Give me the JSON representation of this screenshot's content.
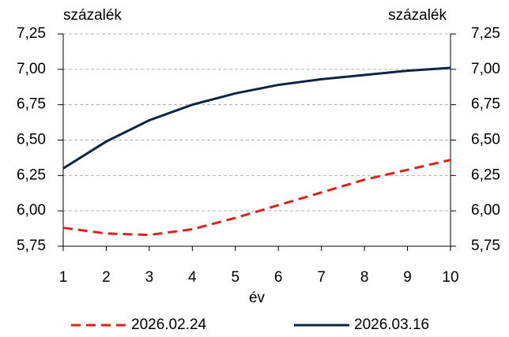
{
  "chart_data": {
    "type": "line",
    "y_label": "százalék",
    "y2_label": "százalék",
    "x_label": "év",
    "x": [
      1,
      2,
      3,
      4,
      5,
      6,
      7,
      8,
      9,
      10
    ],
    "series": [
      {
        "name": "2026.02.24",
        "color": "#e0201b",
        "dash": true,
        "values": [
          5.88,
          5.84,
          5.83,
          5.87,
          5.95,
          6.04,
          6.13,
          6.22,
          6.29,
          6.36
        ]
      },
      {
        "name": "2026.03.16",
        "color": "#0f2345",
        "dash": false,
        "values": [
          6.3,
          6.49,
          6.64,
          6.75,
          6.83,
          6.89,
          6.93,
          6.96,
          6.99,
          7.01
        ]
      }
    ],
    "xlim": [
      1,
      10
    ],
    "xticks": [
      1,
      2,
      3,
      4,
      5,
      6,
      7,
      8,
      9,
      10
    ],
    "ylim": [
      5.75,
      7.25
    ],
    "yticks": [
      {
        "value": 5.75,
        "label": "5,75"
      },
      {
        "value": 6,
        "label": "6,00"
      },
      {
        "value": 6.25,
        "label": "6,25"
      },
      {
        "value": 6.5,
        "label": "6,50"
      },
      {
        "value": 6.75,
        "label": "6,75"
      },
      {
        "value": 7,
        "label": "7,00"
      },
      {
        "value": 7.25,
        "label": "7,25"
      }
    ],
    "y2lim": [
      5.75,
      7.25
    ],
    "y2ticks": [
      {
        "value": 5.75,
        "label": "5,75"
      },
      {
        "value": 6,
        "label": "6,00"
      },
      {
        "value": 6.25,
        "label": "6,25"
      },
      {
        "value": 6.5,
        "label": "6,50"
      },
      {
        "value": 6.75,
        "label": "6,75"
      },
      {
        "value": 7,
        "label": "7,00"
      },
      {
        "value": 7.25,
        "label": "7,25"
      }
    ],
    "grid": true,
    "legend": "bottom"
  }
}
